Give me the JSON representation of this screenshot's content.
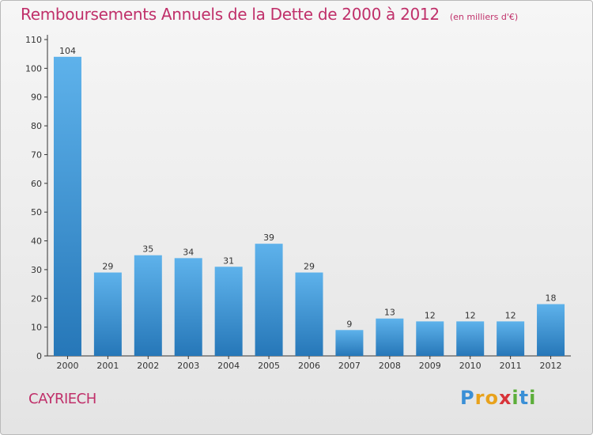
{
  "title": "Remboursements Annuels de la Dette de 2000 à 2012",
  "subtitle": "(en milliers d'€)",
  "commune": "CAYRIECH",
  "logo": {
    "letters": [
      "P",
      "r",
      "o",
      "x",
      "i",
      "t",
      "i"
    ],
    "colors": [
      "#3a8fd6",
      "#e8a21c",
      "#e8a21c",
      "#d8343a",
      "#5cae3a",
      "#3a8fd6",
      "#5cae3a"
    ]
  },
  "colors": {
    "accent": "#c0306a",
    "bar_top": "#5eb2eb",
    "bar_bottom": "#2677b8",
    "axis": "#333333"
  },
  "chart_data": {
    "type": "bar",
    "categories": [
      "2000",
      "2001",
      "2002",
      "2003",
      "2004",
      "2005",
      "2006",
      "2007",
      "2008",
      "2009",
      "2010",
      "2011",
      "2012"
    ],
    "values": [
      104,
      29,
      35,
      34,
      31,
      39,
      29,
      9,
      13,
      12,
      12,
      12,
      18
    ],
    "ylim": [
      0,
      110
    ],
    "yticks": [
      0,
      10,
      20,
      30,
      40,
      50,
      60,
      70,
      80,
      90,
      100,
      110
    ],
    "data_labels": true,
    "grid": false
  }
}
